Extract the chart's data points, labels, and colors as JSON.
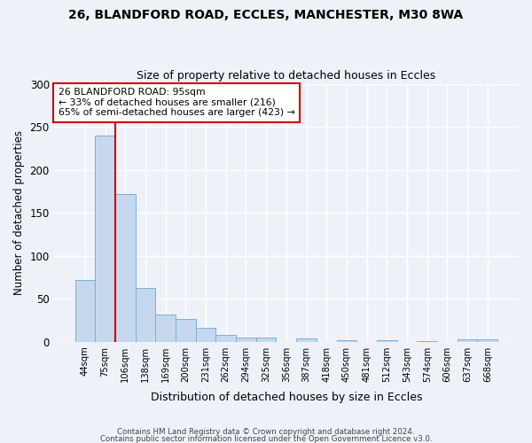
{
  "title1": "26, BLANDFORD ROAD, ECCLES, MANCHESTER, M30 8WA",
  "title2": "Size of property relative to detached houses in Eccles",
  "xlabel": "Distribution of detached houses by size in Eccles",
  "ylabel": "Number of detached properties",
  "bar_labels": [
    "44sqm",
    "75sqm",
    "106sqm",
    "138sqm",
    "169sqm",
    "200sqm",
    "231sqm",
    "262sqm",
    "294sqm",
    "325sqm",
    "356sqm",
    "387sqm",
    "418sqm",
    "450sqm",
    "481sqm",
    "512sqm",
    "543sqm",
    "574sqm",
    "606sqm",
    "637sqm",
    "668sqm"
  ],
  "bar_values": [
    72,
    240,
    172,
    63,
    32,
    26,
    16,
    8,
    5,
    5,
    0,
    4,
    0,
    2,
    0,
    2,
    0,
    1,
    0,
    3,
    3
  ],
  "bar_color": "#c5d8ee",
  "bar_edge_color": "#7bafd4",
  "ylim": [
    0,
    300
  ],
  "yticks": [
    0,
    50,
    100,
    150,
    200,
    250,
    300
  ],
  "annotation_title": "26 BLANDFORD ROAD: 95sqm",
  "annotation_line1": "← 33% of detached houses are smaller (216)",
  "annotation_line2": "65% of semi-detached houses are larger (423) →",
  "annotation_box_color": "#ffffff",
  "annotation_box_edge": "#cc0000",
  "property_line_color": "#cc0000",
  "footer1": "Contains HM Land Registry data © Crown copyright and database right 2024.",
  "footer2": "Contains public sector information licensed under the Open Government Licence v3.0.",
  "bg_color": "#eef2f8",
  "grid_color": "#ffffff"
}
